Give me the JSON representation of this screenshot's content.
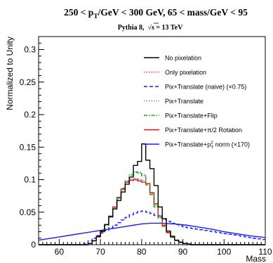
{
  "title": {
    "pre": "250 < p",
    "sub": "T",
    "post": "/GeV < 300 GeV, 65 < mass/GeV < 95"
  },
  "subtitle": {
    "left": "Pythia 8,",
    "sqrt": "√",
    "right": "s = 13 TeV"
  },
  "chart_data": {
    "type": "line",
    "xlabel": "Mass",
    "ylabel": "Normalized to Unity",
    "xlim": [
      55,
      110
    ],
    "ylim": [
      0,
      0.32
    ],
    "x_ticks": [
      60,
      70,
      80,
      90,
      100,
      110
    ],
    "y_ticks": [
      0,
      0.05,
      0.1,
      0.15,
      0.2,
      0.25,
      0.3
    ],
    "y_tick_labels": [
      "0",
      "0.05",
      "0.1",
      "0.15",
      "0.2",
      "0.25",
      "0.3"
    ],
    "grid": false,
    "legend_position": "top-right",
    "bin_edges": [
      55,
      56,
      57,
      58,
      59,
      60,
      61,
      62,
      63,
      64,
      65,
      66,
      67,
      68,
      69,
      70,
      71,
      72,
      73,
      74,
      75,
      76,
      77,
      78,
      79,
      80,
      81,
      82,
      83,
      84,
      85,
      86,
      87,
      88,
      89,
      90,
      91,
      92,
      93,
      94,
      95,
      96,
      97,
      98,
      99,
      100,
      101,
      102,
      103,
      104,
      105,
      106,
      107,
      108,
      109,
      110
    ],
    "series": [
      {
        "name": "No pixelation",
        "color": "#000000",
        "dash": "solid",
        "style": "step",
        "values": [
          0,
          0,
          0,
          0,
          0,
          0,
          0,
          0,
          0,
          0,
          0,
          0,
          0.002,
          0.006,
          0.013,
          0.021,
          0.031,
          0.043,
          0.055,
          0.068,
          0.081,
          0.093,
          0.104,
          0.122,
          0.128,
          0.155,
          0.13,
          0.117,
          0.091,
          0.058,
          0.04,
          0.021,
          0.013,
          0.007,
          0.004,
          0.002,
          0.001,
          0,
          0,
          0,
          0,
          0,
          0,
          0,
          0,
          0,
          0,
          0,
          0,
          0,
          0,
          0,
          0,
          0,
          0
        ]
      },
      {
        "name": "Only pixelation",
        "color": "#e8402c",
        "dash": "dot",
        "style": "step",
        "values": [
          0,
          0,
          0,
          0,
          0,
          0,
          0,
          0,
          0,
          0,
          0,
          0,
          0.002,
          0.006,
          0.012,
          0.02,
          0.03,
          0.042,
          0.057,
          0.072,
          0.087,
          0.098,
          0.101,
          0.102,
          0.1,
          0.099,
          0.094,
          0.079,
          0.062,
          0.045,
          0.03,
          0.019,
          0.012,
          0.007,
          0.004,
          0.002,
          0.001,
          0,
          0,
          0,
          0,
          0,
          0,
          0,
          0,
          0,
          0,
          0,
          0,
          0,
          0,
          0,
          0,
          0,
          0
        ]
      },
      {
        "name": "Pix+Translate (naive) (×0.75)",
        "color": "#1b1bff",
        "dash": "dash",
        "style": "step",
        "values": [
          0,
          0,
          0,
          0,
          0,
          0,
          0,
          0,
          0,
          0,
          0,
          0.002,
          0.006,
          0.01,
          0.014,
          0.018,
          0.022,
          0.026,
          0.03,
          0.034,
          0.038,
          0.042,
          0.046,
          0.049,
          0.051,
          0.052,
          0.05,
          0.048,
          0.045,
          0.042,
          0.039,
          0.036,
          0.033,
          0.031,
          0.029,
          0.027,
          0.026,
          0.025,
          0.024,
          0.023,
          0.022,
          0.021,
          0.02,
          0.019,
          0.018,
          0.017,
          0.016,
          0.015,
          0.014,
          0.013,
          0.012,
          0.011,
          0.01,
          0.009,
          0.008
        ]
      },
      {
        "name": "Pix+Translate",
        "color": "#25c025",
        "dash": "dot",
        "style": "step",
        "values": [
          0,
          0,
          0,
          0,
          0,
          0,
          0,
          0,
          0,
          0,
          0,
          0,
          0.002,
          0.006,
          0.012,
          0.02,
          0.03,
          0.042,
          0.057,
          0.071,
          0.086,
          0.097,
          0.108,
          0.111,
          0.11,
          0.108,
          0.094,
          0.078,
          0.06,
          0.042,
          0.029,
          0.018,
          0.011,
          0.006,
          0.003,
          0.002,
          0.001,
          0,
          0,
          0,
          0,
          0,
          0,
          0,
          0,
          0,
          0,
          0,
          0,
          0,
          0,
          0,
          0,
          0,
          0
        ]
      },
      {
        "name": "Pix+Translate+Flip",
        "color": "#1aa81a",
        "dash": "dashdot",
        "style": "step",
        "values": [
          0,
          0,
          0,
          0,
          0,
          0,
          0,
          0,
          0,
          0,
          0,
          0,
          0.002,
          0.006,
          0.012,
          0.02,
          0.03,
          0.043,
          0.058,
          0.073,
          0.087,
          0.098,
          0.107,
          0.112,
          0.111,
          0.106,
          0.092,
          0.077,
          0.058,
          0.041,
          0.028,
          0.018,
          0.011,
          0.006,
          0.003,
          0.002,
          0.001,
          0,
          0,
          0,
          0,
          0,
          0,
          0,
          0,
          0,
          0,
          0,
          0,
          0,
          0,
          0,
          0,
          0,
          0
        ]
      },
      {
        "name": "Pix+Translate+π/2 Rotation",
        "color": "#d42020",
        "dash": "solid",
        "style": "step",
        "values": [
          0,
          0,
          0,
          0,
          0,
          0,
          0,
          0,
          0,
          0,
          0,
          0,
          0.002,
          0.006,
          0.012,
          0.02,
          0.031,
          0.044,
          0.058,
          0.072,
          0.085,
          0.096,
          0.099,
          0.1,
          0.098,
          0.096,
          0.094,
          0.08,
          0.063,
          0.044,
          0.03,
          0.019,
          0.012,
          0.007,
          0.004,
          0.002,
          0.001,
          0,
          0,
          0,
          0,
          0,
          0,
          0,
          0,
          0,
          0,
          0,
          0,
          0,
          0,
          0,
          0,
          0,
          0
        ]
      },
      {
        "name": "Pix+Translate+p",
        "name_sub": "T",
        "name_sup": "2",
        "name_post": " norm (×170)",
        "color": "#1b1bff",
        "dash": "solid",
        "style": "smooth",
        "x": [
          55,
          57,
          60,
          63,
          66,
          69,
          72,
          75,
          78,
          80,
          82,
          85,
          88,
          91,
          94,
          97,
          100,
          103,
          106,
          110
        ],
        "values": [
          0.007,
          0.009,
          0.012,
          0.015,
          0.018,
          0.021,
          0.024,
          0.027,
          0.03,
          0.032,
          0.033,
          0.033,
          0.032,
          0.03,
          0.027,
          0.024,
          0.02,
          0.017,
          0.014,
          0.011
        ]
      }
    ]
  }
}
